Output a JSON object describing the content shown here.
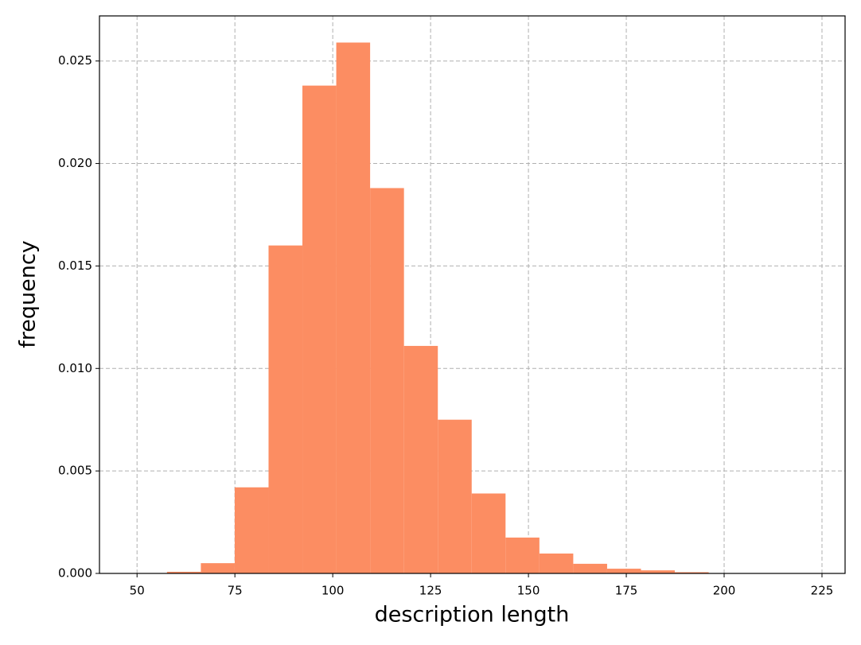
{
  "chart_data": {
    "type": "histogram",
    "xlabel": "description length",
    "ylabel": "frequency",
    "bins": [
      49,
      57.65,
      66.3,
      74.95,
      83.6,
      92.25,
      100.9,
      109.55,
      118.2,
      126.85,
      135.5,
      144.15,
      152.8,
      161.45,
      170.1,
      178.75,
      187.4,
      196.05
    ],
    "counts": [
      2e-05,
      8e-05,
      0.0005,
      0.0042,
      0.016,
      0.0238,
      0.0259,
      0.0188,
      0.0111,
      0.0075,
      0.0039,
      0.00175,
      0.00097,
      0.00047,
      0.00023,
      0.00015,
      6e-05
    ],
    "color": "#fc8d62",
    "xlim": [
      40.4,
      230.9
    ],
    "ylim": [
      0,
      0.0272
    ],
    "xticks": [
      50,
      75,
      100,
      125,
      150,
      175,
      200,
      225
    ],
    "yticks": [
      {
        "value": 0,
        "label": "0.000"
      },
      {
        "value": 0.005,
        "label": "0.005"
      },
      {
        "value": 0.01,
        "label": "0.010"
      },
      {
        "value": 0.015,
        "label": "0.015"
      },
      {
        "value": 0.02,
        "label": "0.020"
      },
      {
        "value": 0.025,
        "label": "0.025"
      }
    ],
    "grid": true
  }
}
